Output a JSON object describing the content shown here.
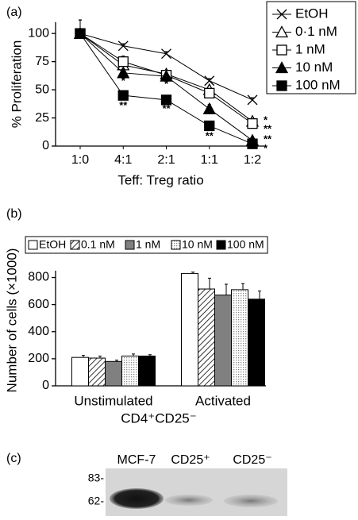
{
  "chart_data": [
    {
      "type": "line",
      "panel": "(a)",
      "ylabel": "% Proliferation",
      "xlabel": "Teff: Treg ratio",
      "categories": [
        "1:0",
        "4:1",
        "2:1",
        "1:1",
        "1:2"
      ],
      "ylim": [
        0,
        110
      ],
      "yticks": [
        0,
        25,
        50,
        75,
        100
      ],
      "legend": "upper right",
      "series": [
        {
          "name": "EtOH",
          "marker": "x",
          "color": "#000000",
          "values": [
            100,
            89,
            82,
            58,
            41
          ],
          "errors": [
            12,
            2,
            2,
            2,
            2
          ]
        },
        {
          "name": "0·1 nM",
          "marker": "triangle-open",
          "color": "#000000",
          "values": [
            100,
            72,
            64,
            50,
            22
          ],
          "errors": [
            12,
            3,
            3,
            3,
            3
          ]
        },
        {
          "name": "1 nM",
          "marker": "square-open",
          "color": "#000000",
          "values": [
            100,
            75,
            63,
            47,
            20
          ],
          "errors": [
            12,
            5,
            4,
            4,
            3
          ]
        },
        {
          "name": "10 nM",
          "marker": "triangle-filled",
          "color": "#000000",
          "values": [
            100,
            65,
            62,
            33,
            5
          ],
          "errors": [
            12,
            4,
            3,
            4,
            2
          ]
        },
        {
          "name": "100 nM",
          "marker": "square-filled",
          "color": "#000000",
          "values": [
            100,
            45,
            41,
            18,
            2
          ],
          "errors": [
            12,
            4,
            3,
            3,
            2
          ]
        }
      ],
      "annotations": [
        {
          "text": "*",
          "category": "4:1",
          "y": 59
        },
        {
          "text": "**",
          "category": "4:1",
          "y": 37
        },
        {
          "text": "*",
          "category": "2:1",
          "y": 56
        },
        {
          "text": "**",
          "category": "2:1",
          "y": 34
        },
        {
          "text": "*",
          "category": "1:1",
          "y": 31
        },
        {
          "text": "**",
          "category": "1:1",
          "y": 10
        },
        {
          "text": "*",
          "category": "1:2",
          "y": 24
        },
        {
          "text": "**",
          "category": "1:2",
          "y": 16
        },
        {
          "text": "**",
          "category": "1:2",
          "y": 7
        },
        {
          "text": "*",
          "category": "1:2",
          "y": -1
        }
      ]
    },
    {
      "type": "bar",
      "panel": "(b)",
      "ylabel": "Number of cells (×1000)",
      "xlabel": "CD4⁺CD25⁻",
      "categories": [
        "Unstimulated",
        "Activated"
      ],
      "ylim": [
        0,
        850
      ],
      "yticks": [
        0,
        200,
        400,
        600,
        800
      ],
      "legend": "top",
      "series": [
        {
          "name": "EtOH",
          "color": "#ffffff",
          "pattern": "solid",
          "values": [
            210,
            830
          ],
          "errors": [
            15,
            10
          ]
        },
        {
          "name": "0.1 nM",
          "color": "#000000",
          "pattern": "hatch",
          "values": [
            205,
            715
          ],
          "errors": [
            15,
            80
          ]
        },
        {
          "name": "1 nM",
          "color": "#808080",
          "pattern": "solid",
          "values": [
            180,
            670
          ],
          "errors": [
            10,
            80
          ]
        },
        {
          "name": "10 nM",
          "color": "#bbbbbb",
          "pattern": "dots",
          "values": [
            220,
            710
          ],
          "errors": [
            15,
            45
          ]
        },
        {
          "name": "100 nM",
          "color": "#000000",
          "pattern": "solid",
          "values": [
            220,
            640
          ],
          "errors": [
            10,
            60
          ]
        }
      ]
    }
  ],
  "blot": {
    "panel": "(c)",
    "lanes": [
      "MCF-7",
      "CD25⁺",
      "CD25⁻"
    ],
    "markers": [
      "83-",
      "62-"
    ]
  }
}
